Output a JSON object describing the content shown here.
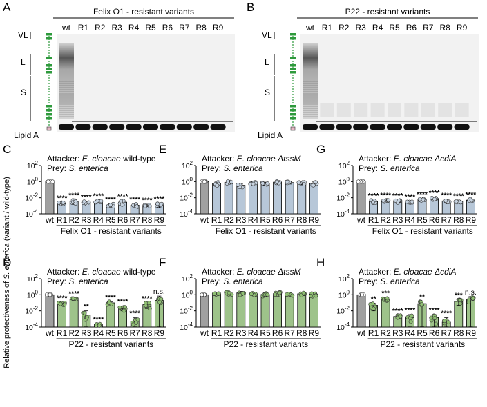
{
  "figure": {
    "panels": {
      "A": "A",
      "B": "B",
      "C": "C",
      "D": "D",
      "E": "E",
      "F": "F",
      "G": "G",
      "H": "H"
    },
    "gel_A": {
      "header": "Felix O1 - resistant variants",
      "lanes": [
        "wt",
        "R1",
        "R2",
        "R3",
        "R4",
        "R5",
        "R6",
        "R7",
        "R8",
        "R9"
      ],
      "lps_labels": [
        "VL",
        "L",
        "S",
        "Lipid A"
      ]
    },
    "gel_B": {
      "header": "P22 - resistant variants",
      "lanes": [
        "wt",
        "R1",
        "R2",
        "R3",
        "R4",
        "R5",
        "R6",
        "R7",
        "R8",
        "R9"
      ],
      "lps_labels": [
        "VL",
        "L",
        "S",
        "Lipid A"
      ]
    },
    "y_axis_label": "Relative protectiveness of S. enterica (variant / wild-type)",
    "y_axis_label_parts": [
      "Relative protectiveness of ",
      "S. enterica",
      " (variant / wild-type)"
    ],
    "colors": {
      "wt_bar": "#a0a0a0",
      "felix_bar": "#b7c7d8",
      "p22_bar": "#9ec38a",
      "felix_point": "#c7d3e0",
      "p22_point": "#8fbf73",
      "gel_band": "#111111",
      "ladder_green": "#2e9a3c"
    },
    "icons": {
      "lps_ladder": "lps-structure-icon"
    }
  },
  "chart_data": [
    {
      "panel": "C",
      "type": "bar",
      "scale": "log10",
      "attacker_prefix": "Attacker: ",
      "attacker_species": "E. cloacae",
      "attacker_suffix": " wild-type",
      "prey_prefix": "Prey: ",
      "prey_species": "S. enterica",
      "xlabel": "Felix O1 - resistant variants",
      "categories": [
        "wt",
        "R1",
        "R2",
        "R3",
        "R4",
        "R5",
        "R6",
        "R7",
        "R8",
        "R9"
      ],
      "values": [
        1,
        0.0018,
        0.0035,
        0.0025,
        0.0035,
        0.0012,
        0.0028,
        0.0012,
        0.0011,
        0.0014
      ],
      "errors": [
        0,
        0.0008,
        0.002,
        0.001,
        0.001,
        0.0005,
        0.0015,
        0.0005,
        0.0003,
        0.0008
      ],
      "significance": [
        "",
        "****",
        "****",
        "****",
        "****",
        "****",
        "****",
        "****",
        "****",
        "****"
      ],
      "ylim": [
        0.0001,
        100
      ],
      "yticks": [
        "10^-4",
        "10^-2",
        "10^0",
        "10^2"
      ]
    },
    {
      "panel": "E",
      "type": "bar",
      "scale": "log10",
      "attacker_prefix": "Attacker: ",
      "attacker_species": "E. cloacae",
      "attacker_suffix": " ΔtssM",
      "prey_prefix": "Prey: ",
      "prey_species": "S. enterica",
      "xlabel": "Felix O1 - resistant variants",
      "categories": [
        "wt",
        "R1",
        "R2",
        "R3",
        "R4",
        "R5",
        "R6",
        "R7",
        "R8",
        "R9"
      ],
      "values": [
        1,
        0.6,
        0.8,
        0.35,
        0.75,
        0.6,
        0.85,
        0.75,
        0.65,
        0.6
      ],
      "errors": [
        0,
        0.3,
        0.3,
        0.15,
        0.3,
        0.25,
        0.3,
        0.25,
        0.25,
        0.3
      ],
      "significance": [
        "",
        "",
        "",
        "",
        "",
        "",
        "",
        "",
        "",
        ""
      ],
      "ylim": [
        0.0001,
        100
      ],
      "yticks": [
        "10^-4",
        "10^-2",
        "10^0",
        "10^2"
      ]
    },
    {
      "panel": "G",
      "type": "bar",
      "scale": "log10",
      "attacker_prefix": "Attacker: ",
      "attacker_species": "E. cloacae",
      "attacker_suffix": " ΔcdiA",
      "prey_prefix": "Prey: ",
      "prey_species": "S. enterica",
      "xlabel": "Felix O1 - resistant variants",
      "categories": [
        "wt",
        "R1",
        "R2",
        "R3",
        "R4",
        "R5",
        "R6",
        "R7",
        "R8",
        "R9"
      ],
      "values": [
        1,
        0.0035,
        0.004,
        0.0035,
        0.003,
        0.006,
        0.008,
        0.004,
        0.0035,
        0.005
      ],
      "errors": [
        0,
        0.0015,
        0.0015,
        0.0015,
        0.001,
        0.002,
        0.003,
        0.0015,
        0.001,
        0.002
      ],
      "significance": [
        "",
        "****",
        "****",
        "****",
        "****",
        "****",
        "****",
        "****",
        "****",
        "****"
      ],
      "ylim": [
        0.0001,
        100
      ],
      "yticks": [
        "10^-4",
        "10^-2",
        "10^0",
        "10^2"
      ]
    },
    {
      "panel": "D",
      "type": "bar",
      "scale": "log10",
      "attacker_prefix": "Attacker: ",
      "attacker_species": "E. cloacae",
      "attacker_suffix": " wild-type",
      "prey_prefix": "Prey: ",
      "prey_species": "S. enterica",
      "xlabel": "P22 - resistant variants",
      "categories": [
        "wt",
        "R1",
        "R2",
        "R3",
        "R4",
        "R5",
        "R6",
        "R7",
        "R8",
        "R9"
      ],
      "values": [
        1,
        0.08,
        0.3,
        0.003,
        0.0002,
        0.1,
        0.025,
        0.0005,
        0.06,
        0.2
      ],
      "errors": [
        0,
        0.03,
        0.1,
        0.007,
        5e-05,
        0.04,
        0.015,
        0.001,
        0.04,
        0.5
      ],
      "significance": [
        "",
        "****",
        "****",
        "**",
        "****",
        "****",
        "****",
        "****",
        "****",
        "n.s."
      ],
      "ylim": [
        0.0001,
        100
      ],
      "yticks": [
        "10^-4",
        "10^-2",
        "10^0",
        "10^2"
      ]
    },
    {
      "panel": "F",
      "type": "bar",
      "scale": "log10",
      "attacker_prefix": "Attacker: ",
      "attacker_species": "E. cloacae",
      "attacker_suffix": " ΔtssM",
      "prey_prefix": "Prey: ",
      "prey_species": "S. enterica",
      "xlabel": "P22 - resistant variants",
      "categories": [
        "wt",
        "R1",
        "R2",
        "R3",
        "R4",
        "R5",
        "R6",
        "R7",
        "R8",
        "R9"
      ],
      "values": [
        1,
        1.3,
        1.5,
        1.7,
        1.3,
        1.1,
        1.4,
        1.2,
        1.3,
        1.2
      ],
      "errors": [
        0,
        0.5,
        0.6,
        0.9,
        0.5,
        0.5,
        0.7,
        0.4,
        0.5,
        0.6
      ],
      "significance": [
        "",
        "",
        "",
        "",
        "",
        "",
        "",
        "",
        "",
        ""
      ],
      "ylim": [
        0.0001,
        100
      ],
      "yticks": [
        "10^-4",
        "10^-2",
        "10^0",
        "10^2"
      ]
    },
    {
      "panel": "H",
      "type": "bar",
      "scale": "log10",
      "attacker_prefix": "Attacker: ",
      "attacker_species": "E. cloacae",
      "attacker_suffix": " ΔcdiA",
      "prey_prefix": "Prey: ",
      "prey_species": "S. enterica",
      "xlabel": "P22 - resistant variants",
      "categories": [
        "wt",
        "R1",
        "R2",
        "R3",
        "R4",
        "R5",
        "R6",
        "R7",
        "R8",
        "R9"
      ],
      "values": [
        1,
        0.05,
        0.3,
        0.002,
        0.0015,
        0.08,
        0.0015,
        0.0004,
        0.15,
        0.3
      ],
      "errors": [
        0,
        0.04,
        0.15,
        0.001,
        0.002,
        0.08,
        0.002,
        0.001,
        0.1,
        0.3
      ],
      "significance": [
        "",
        "**",
        "***",
        "****",
        "****",
        "**",
        "****",
        "****",
        "***",
        "n.s."
      ],
      "ylim": [
        0.0001,
        100
      ],
      "yticks": [
        "10^-4",
        "10^-2",
        "10^0",
        "10^2"
      ]
    }
  ]
}
